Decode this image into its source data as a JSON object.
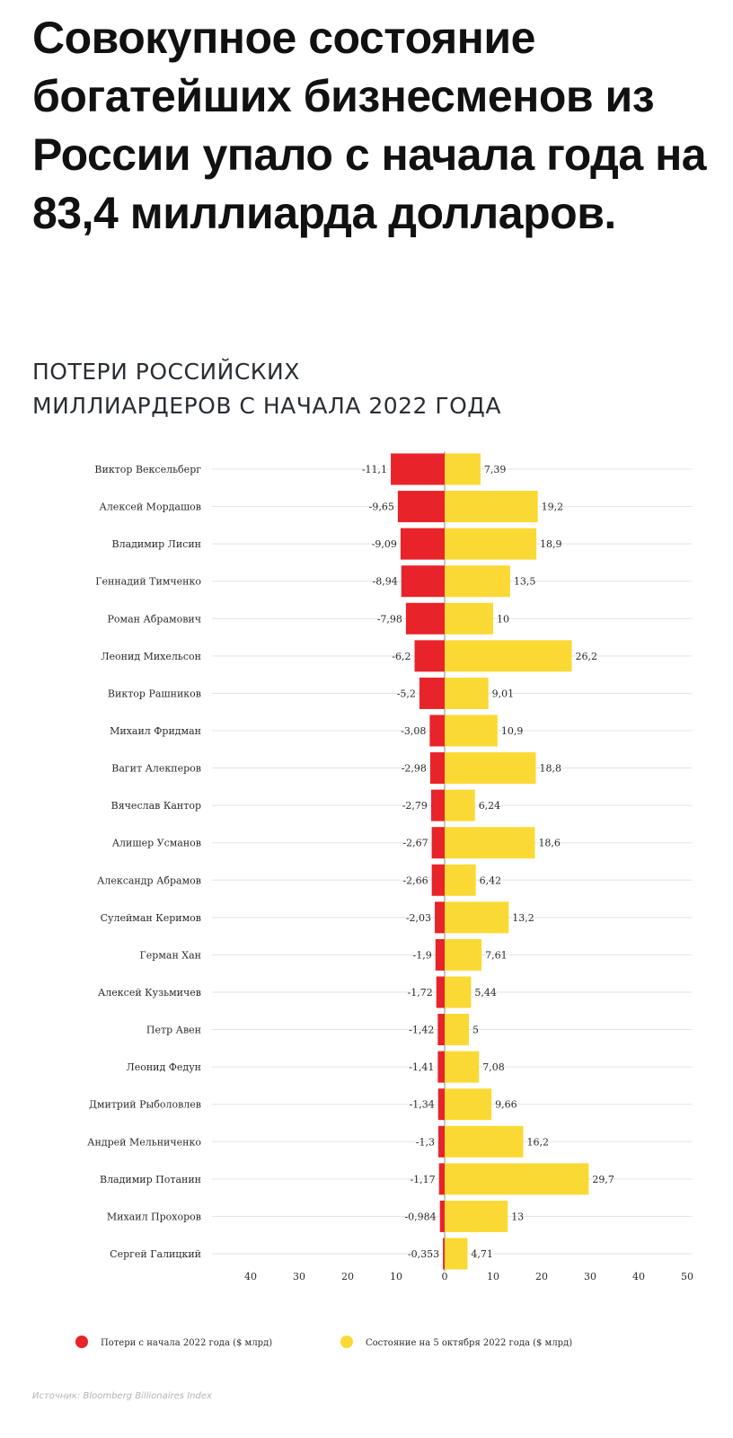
{
  "headline": "Совокупное состояние богатейших бизнесменов из России упало с начала года на 83,4 миллиарда долларов.",
  "chart_title_line1": "ПОТЕРИ РОССИЙСКИХ",
  "chart_title_line2": "МИЛЛИАРДЕРОВ С НАЧАЛА 2022 ГОДА",
  "source": "Источник: Bloomberg Billionaires Index",
  "colors": {
    "loss": "#e8232a",
    "wealth": "#fbd934",
    "grid": "#e3e3e3"
  },
  "chart_data": {
    "type": "bar",
    "orientation": "horizontal-diverging",
    "title": "ПОТЕРИ РОССИЙСКИХ МИЛЛИАРДЕРОВ С НАЧАЛА 2022 ГОДА",
    "categories": [
      "Виктор Вексельберг",
      "Алексей Мордашов",
      "Владимир Лисин",
      "Геннадий Тимченко",
      "Роман Абрамович",
      "Леонид Михельсон",
      "Виктор Рашников",
      "Михаил Фридман",
      "Вагит Алекперов",
      "Вячеслав Кантор",
      "Алишер Усманов",
      "Александр Абрамов",
      "Сулейман Керимов",
      "Герман Хан",
      "Алексей Кузьмичев",
      "Петр Авен",
      "Леонид Федун",
      "Дмитрий Рыболовлев",
      "Андрей Мельниченко",
      "Владимир Потанин",
      "Михаил Прохоров",
      "Сергей Галицкий"
    ],
    "series": [
      {
        "name": "Потери с начала 2022 года ($ млрд)",
        "values": [
          -11.1,
          -9.65,
          -9.09,
          -8.94,
          -7.98,
          -6.2,
          -5.2,
          -3.08,
          -2.98,
          -2.79,
          -2.67,
          -2.66,
          -2.03,
          -1.9,
          -1.72,
          -1.42,
          -1.41,
          -1.34,
          -1.3,
          -1.17,
          -0.984,
          -0.353
        ],
        "labels": [
          "-11,1",
          "-9,65",
          "-9,09",
          "-8,94",
          "-7,98",
          "-6,2",
          "-5,2",
          "-3,08",
          "-2,98",
          "-2,79",
          "-2,67",
          "-2,66",
          "-2,03",
          "-1,9",
          "-1,72",
          "-1,42",
          "-1,41",
          "-1,34",
          "-1,3",
          "-1,17",
          "-0,984",
          "-0,353"
        ]
      },
      {
        "name": "Состояние на 5 октября 2022 года ($ млрд)",
        "values": [
          7.39,
          19.2,
          18.9,
          13.5,
          10,
          26.2,
          9.01,
          10.9,
          18.8,
          6.24,
          18.6,
          6.42,
          13.2,
          7.61,
          5.44,
          5,
          7.08,
          9.66,
          16.2,
          29.7,
          13,
          4.71
        ],
        "labels": [
          "7,39",
          "19,2",
          "18,9",
          "13,5",
          "10",
          "26,2",
          "9,01",
          "10,9",
          "18,8",
          "6,24",
          "18,6",
          "6,42",
          "13,2",
          "7,61",
          "5,44",
          "5",
          "7,08",
          "9,66",
          "16,2",
          "29,7",
          "13",
          "4,71"
        ]
      }
    ],
    "xticks": [
      -40,
      -30,
      -20,
      -10,
      0,
      10,
      20,
      30,
      40,
      50
    ],
    "xtick_labels": [
      "40",
      "30",
      "20",
      "10",
      "0",
      "10",
      "20",
      "30",
      "40",
      "50"
    ],
    "xlim": [
      -40,
      50
    ],
    "grid": "horizontal row lines",
    "legend_position": "bottom"
  }
}
